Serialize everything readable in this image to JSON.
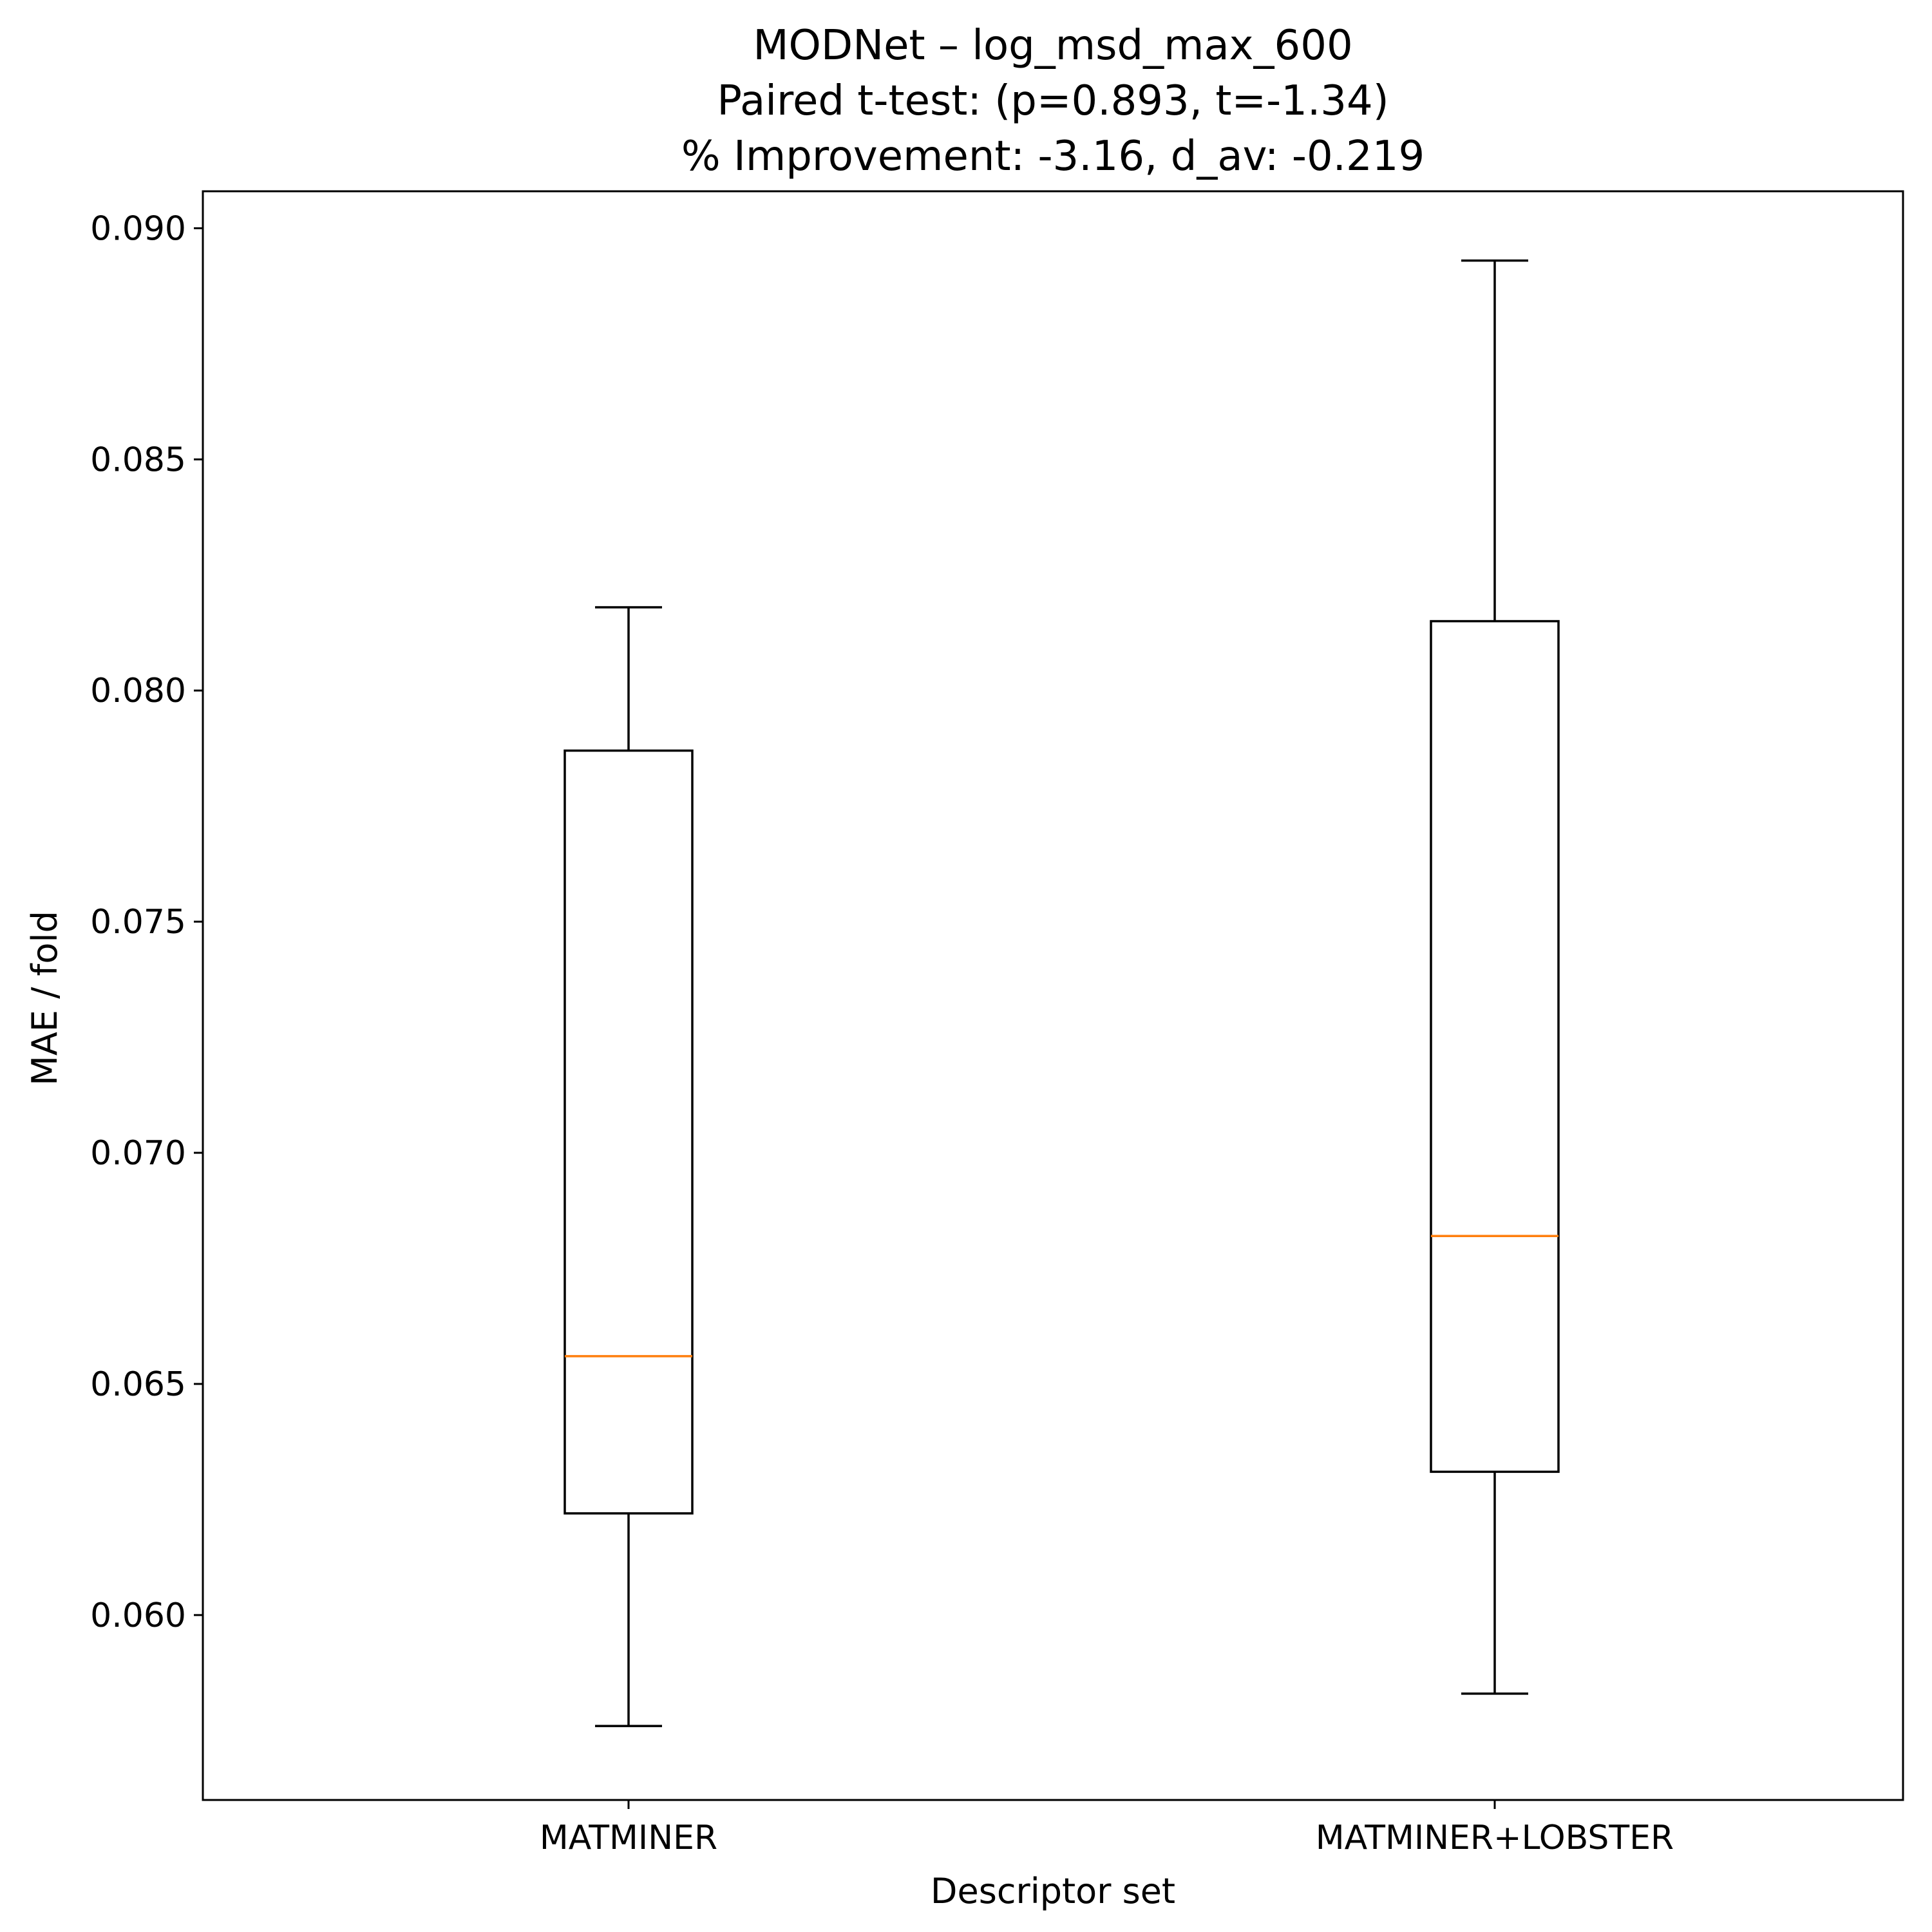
{
  "title": {
    "line1": "MODNet – log_msd_max_600",
    "line2": "Paired t-test: (p=0.893, t=-1.34)",
    "line3": "% Improvement: -3.16, d_av: -0.219"
  },
  "axes": {
    "xlabel": "Descriptor set",
    "ylabel": "MAE / fold",
    "yticks": [
      "0.060",
      "0.065",
      "0.070",
      "0.075",
      "0.080",
      "0.085",
      "0.090"
    ],
    "xticks": [
      "MATMINER",
      "MATMINER+LOBSTER"
    ]
  },
  "colors": {
    "box": "#000000",
    "median": "#ff7f0e",
    "background": "#ffffff"
  },
  "chart_data": {
    "type": "boxplot",
    "title": "MODNet – log_msd_max_600\nPaired t-test: (p=0.893, t=-1.34)\n% Improvement: -3.16, d_av: -0.219",
    "xlabel": "Descriptor set",
    "ylabel": "MAE / fold",
    "categories": [
      "MATMINER",
      "MATMINER+LOBSTER"
    ],
    "series": [
      {
        "name": "MATMINER",
        "min": 0.0576,
        "q1": 0.0622,
        "median": 0.0656,
        "q3": 0.0787,
        "max": 0.0818
      },
      {
        "name": "MATMINER+LOBSTER",
        "min": 0.0583,
        "q1": 0.0631,
        "median": 0.0682,
        "q3": 0.0815,
        "max": 0.0893
      }
    ],
    "ylim": [
      0.056,
      0.0908
    ],
    "yticks": [
      0.06,
      0.065,
      0.07,
      0.075,
      0.08,
      0.085,
      0.09
    ],
    "grid": false,
    "legend": null,
    "stats": {
      "p_value": 0.893,
      "t_statistic": -1.34,
      "percent_improvement": -3.16,
      "d_av": -0.219
    }
  }
}
